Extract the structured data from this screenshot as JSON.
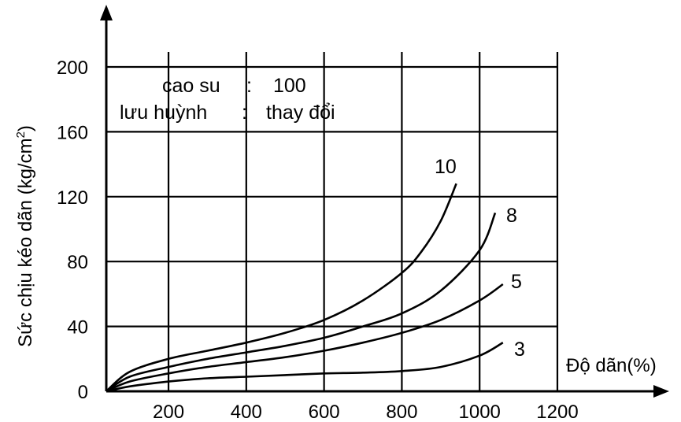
{
  "chart_data": {
    "type": "line",
    "xlabel": "Độ dãn(%)",
    "ylabel": "Sức chịu kéo dãn (kg/cm",
    "ylabel_sup": "2",
    "ylabel_close": ")",
    "xlim": [
      40,
      1200
    ],
    "ylim": [
      0,
      200
    ],
    "x_ticks": [
      200,
      400,
      600,
      800,
      1000,
      1200
    ],
    "y_ticks": [
      0,
      40,
      80,
      120,
      160,
      200
    ],
    "grid": true,
    "annotations": [
      {
        "left": "cao su",
        "sep": ":",
        "right": "100"
      },
      {
        "left": "lưu huỳnh",
        "sep": ":",
        "right": "thay đổi"
      }
    ],
    "series": [
      {
        "name": "10",
        "x": [
          40,
          100,
          200,
          300,
          400,
          500,
          600,
          700,
          800,
          850,
          900,
          940
        ],
        "y": [
          0,
          12,
          20,
          25,
          30,
          36,
          44,
          56,
          73,
          86,
          105,
          128
        ]
      },
      {
        "name": "8",
        "x": [
          40,
          100,
          200,
          300,
          400,
          500,
          600,
          700,
          800,
          900,
          1000,
          1040
        ],
        "y": [
          0,
          9,
          15,
          20,
          24,
          28,
          33,
          40,
          48,
          62,
          87,
          110
        ]
      },
      {
        "name": "5",
        "x": [
          40,
          100,
          200,
          300,
          400,
          500,
          600,
          700,
          800,
          900,
          1000,
          1060
        ],
        "y": [
          0,
          6,
          11,
          15,
          18,
          21,
          25,
          30,
          36,
          44,
          56,
          66
        ]
      },
      {
        "name": "3",
        "x": [
          40,
          100,
          200,
          300,
          400,
          500,
          600,
          700,
          800,
          900,
          1000,
          1060
        ],
        "y": [
          0,
          3,
          6,
          8,
          9,
          10,
          11,
          11.5,
          12.5,
          15,
          22,
          30
        ]
      }
    ]
  }
}
